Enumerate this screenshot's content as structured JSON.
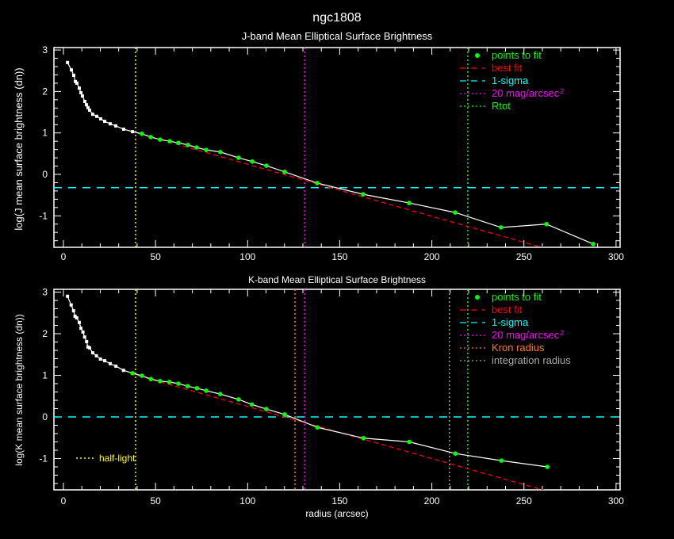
{
  "title": "ngc1808",
  "colors": {
    "bg": "#000000",
    "axis": "#ffffff",
    "profile": "#ffffff",
    "fit_points": "#00ff00",
    "best_fit": "#ff0000",
    "sigma": "#00ffff",
    "mag20": "#ff00ff",
    "rtot": "#00ff00",
    "kron": "#ff8000",
    "integration": "#aaaaaa",
    "half_light": "#ffff00"
  },
  "chart_data": [
    {
      "type": "line",
      "title": "J-band Mean Elliptical Surface Brightness",
      "xlabel": "",
      "ylabel": "log(J mean surface brightness (dn))",
      "xlim": [
        -5,
        303
      ],
      "ylim": [
        -1.76,
        3.06
      ],
      "xticks": [
        "0",
        "50",
        "100",
        "150",
        "200",
        "250",
        "300"
      ],
      "yticks": [
        "-1",
        "0",
        "1",
        "2",
        "3"
      ],
      "profile": {
        "x": [
          2.2,
          4.3,
          5.6,
          6.5,
          7.3,
          8.6,
          9.5,
          10.3,
          11.6,
          12.5,
          13.3,
          14.2,
          15.9,
          18.1,
          20.2,
          22.4,
          25.4,
          28.4,
          32.7,
          37.5,
          42.6,
          47.4,
          52.5,
          57.7,
          62.4,
          67.6,
          72.3,
          77.5,
          85.2,
          95.1,
          102.5,
          110.2,
          120.1,
          137.8,
          162.7,
          187.7,
          212.7,
          237.6,
          262.2,
          287.6
        ],
        "y": [
          2.7,
          2.52,
          2.39,
          2.24,
          2.2,
          2.08,
          1.97,
          1.89,
          1.76,
          1.68,
          1.61,
          1.55,
          1.45,
          1.4,
          1.34,
          1.28,
          1.22,
          1.17,
          1.09,
          1.03,
          0.98,
          0.9,
          0.84,
          0.8,
          0.76,
          0.71,
          0.65,
          0.59,
          0.54,
          0.4,
          0.31,
          0.21,
          0.06,
          -0.21,
          -0.48,
          -0.69,
          -0.92,
          -1.28,
          -1.2,
          -1.68
        ]
      },
      "fit_points": {
        "x": [
          42.6,
          47.4,
          52.5,
          57.7,
          62.4,
          67.6,
          72.3,
          77.5,
          85.2,
          95.1,
          102.5,
          110.2,
          120.1,
          137.8,
          162.7,
          187.7,
          212.7,
          237.6,
          262.2,
          287.6
        ],
        "y": [
          0.98,
          0.9,
          0.84,
          0.8,
          0.76,
          0.71,
          0.65,
          0.59,
          0.54,
          0.4,
          0.31,
          0.21,
          0.06,
          -0.21,
          -0.48,
          -0.69,
          -0.92,
          -1.28,
          -1.2,
          -1.68
        ]
      },
      "best_fit": {
        "slope": -0.01255,
        "intercept": 1.5,
        "x_range": [
          40,
          262
        ]
      },
      "sigma_level": -0.32,
      "vlines": [
        {
          "key": "half_light",
          "x": 39.2
        },
        {
          "key": "mag20",
          "x": 130.9
        },
        {
          "key": "rtot",
          "x": 219.5
        }
      ],
      "legend": [
        {
          "key": "fit_points",
          "style": "point",
          "label": "points to fit"
        },
        {
          "key": "best_fit",
          "style": "dash",
          "label": "best fit"
        },
        {
          "key": "sigma",
          "style": "dash",
          "label": "1-sigma"
        },
        {
          "key": "mag20",
          "style": "dot",
          "label": "20 mag/arcsec",
          "sup": "2"
        },
        {
          "key": "rtot",
          "style": "dot",
          "label": "Rtot"
        }
      ],
      "legend_position": "top-right"
    },
    {
      "type": "line",
      "title": "K-band Mean Elliptical Surface Brightness",
      "xlabel": "radius (arcsec)",
      "ylabel": "log(K mean surface brightness (dn))",
      "xlim": [
        -5,
        303
      ],
      "ylim": [
        -1.75,
        3.06
      ],
      "xticks": [
        "0",
        "50",
        "100",
        "150",
        "200",
        "250",
        "300"
      ],
      "yticks": [
        "-1",
        "0",
        "1",
        "2",
        "3"
      ],
      "profile": {
        "x": [
          2.2,
          4.2,
          5.5,
          6.3,
          7.2,
          8.6,
          9.5,
          10.6,
          11.5,
          12.6,
          13.3,
          14.2,
          15.9,
          17.9,
          20.1,
          22.4,
          25.4,
          28.5,
          32.6,
          37.5,
          42.6,
          47.5,
          52.5,
          57.5,
          62.4,
          67.4,
          72.5,
          77.5,
          85.1,
          95.1,
          102.3,
          110.1,
          120.1,
          137.9,
          162.9,
          187.8,
          212.8,
          237.8,
          262.7
        ],
        "y": [
          2.9,
          2.69,
          2.55,
          2.42,
          2.38,
          2.27,
          2.13,
          2.04,
          1.92,
          1.81,
          1.68,
          1.66,
          1.54,
          1.47,
          1.39,
          1.35,
          1.28,
          1.22,
          1.12,
          1.05,
          0.99,
          0.91,
          0.86,
          0.84,
          0.8,
          0.74,
          0.69,
          0.63,
          0.55,
          0.42,
          0.3,
          0.19,
          0.06,
          -0.25,
          -0.51,
          -0.6,
          -0.88,
          -1.05,
          -1.2
        ]
      },
      "fit_points": {
        "x": [
          37.5,
          42.6,
          47.5,
          52.5,
          57.5,
          62.4,
          67.4,
          72.5,
          77.5,
          85.1,
          95.1,
          102.3,
          110.1,
          120.1,
          137.9,
          162.9,
          187.8,
          212.8,
          237.8,
          262.7
        ],
        "y": [
          1.05,
          0.99,
          0.91,
          0.86,
          0.84,
          0.8,
          0.74,
          0.69,
          0.63,
          0.55,
          0.42,
          0.3,
          0.19,
          0.06,
          -0.25,
          -0.51,
          -0.6,
          -0.88,
          -1.05,
          -1.2
        ]
      },
      "best_fit": {
        "slope": -0.0125,
        "intercept": 1.5,
        "x_range": [
          40,
          262
        ]
      },
      "sigma_level": 0.0,
      "vlines": [
        {
          "key": "half_light",
          "x": 39.2
        },
        {
          "key": "kron",
          "x": 125.7
        },
        {
          "key": "mag20",
          "x": 130.9
        },
        {
          "key": "integration",
          "x": 209.6
        },
        {
          "key": "rtot",
          "x": 219.5
        }
      ],
      "legend": [
        {
          "key": "fit_points",
          "style": "point",
          "label": "points to fit"
        },
        {
          "key": "best_fit",
          "style": "dash",
          "label": "best fit"
        },
        {
          "key": "sigma",
          "style": "dash",
          "label": "1-sigma"
        },
        {
          "key": "mag20",
          "style": "dot",
          "label": "20 mag/arcsec",
          "sup": "2"
        },
        {
          "key": "kron",
          "style": "dot",
          "label": "Kron radius"
        },
        {
          "key": "integration",
          "style": "dot",
          "label": "integration radius"
        }
      ],
      "legend_position": "top-right",
      "half_light_label": "half-light"
    }
  ]
}
